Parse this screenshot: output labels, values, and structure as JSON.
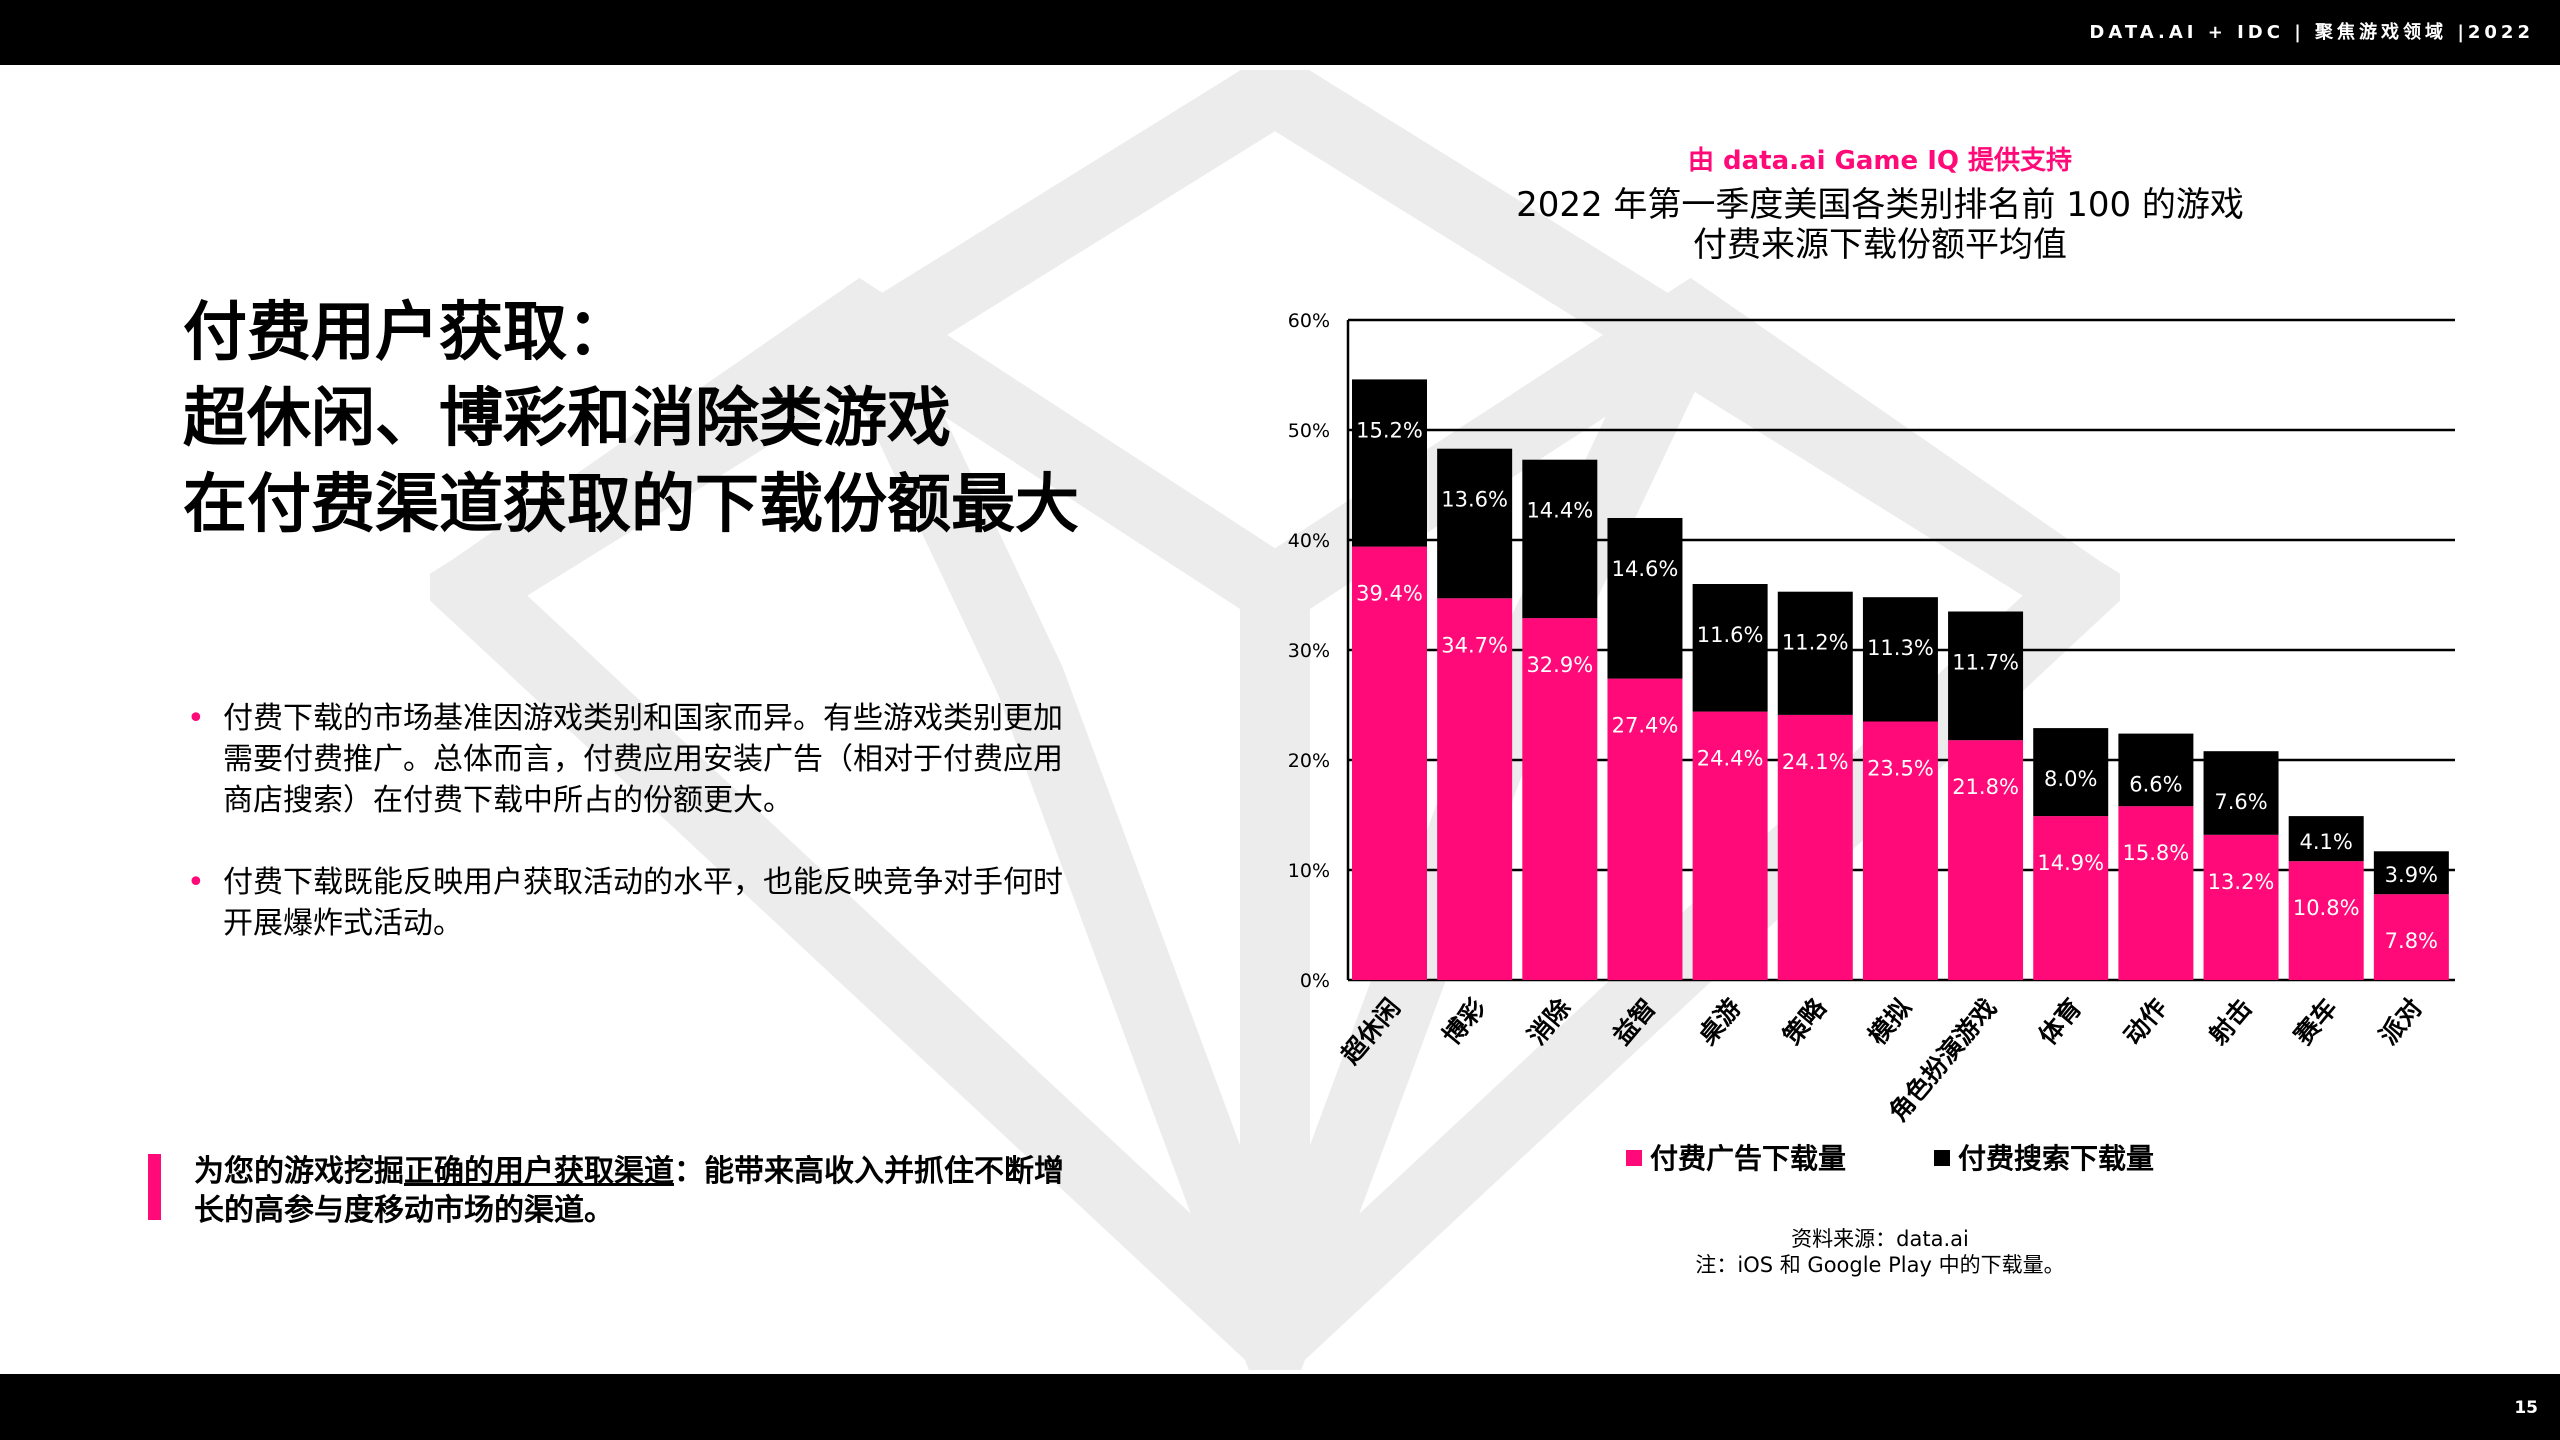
{
  "header": {
    "brand": "DATA.AI + IDC  |  聚焦游戏领域  |2022"
  },
  "footer": {
    "page_number": "15"
  },
  "headline": {
    "line1": "付费用户获取：",
    "line2": "超休闲、博彩和消除类游戏",
    "line3": "在付费渠道获取的下载份额最大"
  },
  "bullets": [
    {
      "text": "付费下载的市场基准因游戏类别和国家而异。有些游戏类别更加需要付费推广。总体而言，付费应用安装广告（相对于付费应用商店搜索）在付费下载中所占的份额更大。"
    },
    {
      "text": "付费下载既能反映用户获取活动的水平，也能反映竞争对手何时开展爆炸式活动。"
    }
  ],
  "callout": {
    "prefix": "为您的游戏挖掘",
    "emphasis": "正确的用户获取渠道",
    "suffix": "：能带来高收入并抓住不断增长的高参与度移动市场的渠道。"
  },
  "chart_header": {
    "subtitle": "由 data.ai Game IQ 提供支持",
    "title_line1": "2022 年第一季度美国各类别排名前 100 的游戏",
    "title_line2": "付费来源下载份额平均值"
  },
  "chart_data": {
    "type": "bar",
    "stacked": true,
    "categories": [
      "超休闲",
      "博彩",
      "消除",
      "益智",
      "桌游",
      "策略",
      "模拟",
      "角色扮演游戏",
      "体育",
      "动作",
      "射击",
      "赛车",
      "派对"
    ],
    "series": [
      {
        "name": "付费广告下载量",
        "color": "#ff0a78",
        "values": [
          39.4,
          34.7,
          32.9,
          27.4,
          24.4,
          24.1,
          23.5,
          21.8,
          14.9,
          15.8,
          13.2,
          10.8,
          7.8
        ]
      },
      {
        "name": "付费搜索下载量",
        "color": "#000000",
        "values": [
          15.2,
          13.6,
          14.4,
          14.6,
          11.6,
          11.2,
          11.3,
          11.7,
          8.0,
          6.6,
          7.6,
          4.1,
          3.9
        ]
      }
    ],
    "y_ticks": [
      "0%",
      "10%",
      "20%",
      "30%",
      "40%",
      "50%",
      "60%"
    ],
    "ylim": [
      0,
      60
    ],
    "grid": true,
    "legend_position": "bottom"
  },
  "legend": {
    "paid_ads": "付费广告下载量",
    "paid_search": "付费搜索下载量",
    "paid_ads_color": "#ff0a78",
    "paid_search_color": "#000000"
  },
  "source": {
    "line1": "资料来源：data.ai",
    "line2": "注：iOS 和 Google Play 中的下载量。"
  }
}
